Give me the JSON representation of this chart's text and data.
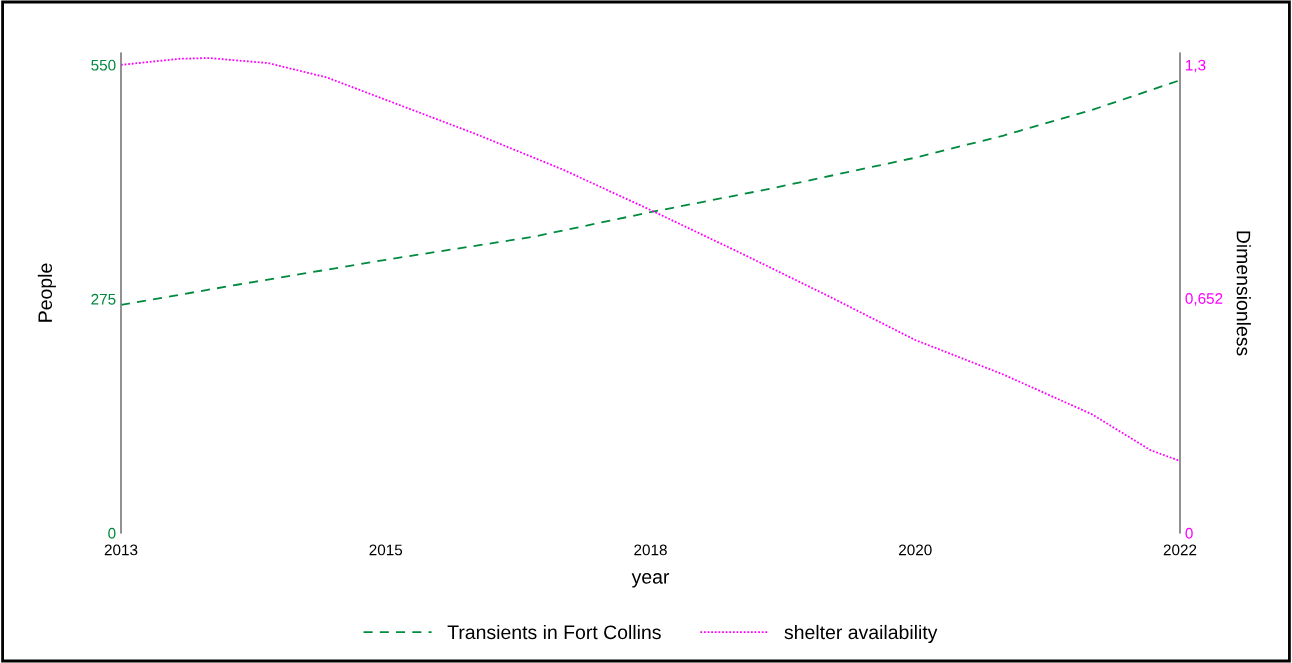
{
  "chart_data": {
    "type": "line",
    "xlabel": "year",
    "ylabel": "People",
    "y2label": "Dimensionless",
    "xlim": [
      2013,
      2022
    ],
    "xticks": [
      {
        "value": 2013,
        "label": "2013"
      },
      {
        "value": 2015.25,
        "label": "2015"
      },
      {
        "value": 2017.5,
        "label": "2018"
      },
      {
        "value": 2019.75,
        "label": "2020"
      },
      {
        "value": 2022,
        "label": "2022"
      }
    ],
    "ylim": [
      0,
      564
    ],
    "yticks": [
      0,
      275,
      550
    ],
    "y2lim": [
      0,
      1.333
    ],
    "y2ticks": [
      {
        "value": 0,
        "label": "0"
      },
      {
        "value": 0.652,
        "label": "0,652"
      },
      {
        "value": 1.3,
        "label": "1,3"
      }
    ],
    "grid": false,
    "legend": "bottom",
    "series": [
      {
        "name": "Transients in Fort Collins",
        "color": "#008a3e",
        "line_style": "dashed",
        "x": [
          2013,
          2014,
          2015.25,
          2016.5,
          2017.5,
          2018.5,
          2019.75,
          2020.5,
          2021.25,
          2022
        ],
        "values": [
          268,
          292,
          321,
          348,
          377,
          404,
          441,
          467,
          497,
          532
        ]
      },
      {
        "name": "shelter availability",
        "color": "#ff00ff",
        "line_style": "dotted",
        "axis": "y2",
        "x": [
          2013,
          2013.5,
          2013.75,
          2014.25,
          2014.75,
          2015.25,
          2016,
          2016.75,
          2017.5,
          2018.25,
          2019,
          2019.75,
          2020.5,
          2021.25,
          2021.75,
          2022
        ],
        "values": [
          1.3,
          1.317,
          1.319,
          1.305,
          1.265,
          1.203,
          1.11,
          1.01,
          0.897,
          0.78,
          0.66,
          0.536,
          0.44,
          0.33,
          0.23,
          0.2
        ]
      }
    ]
  }
}
